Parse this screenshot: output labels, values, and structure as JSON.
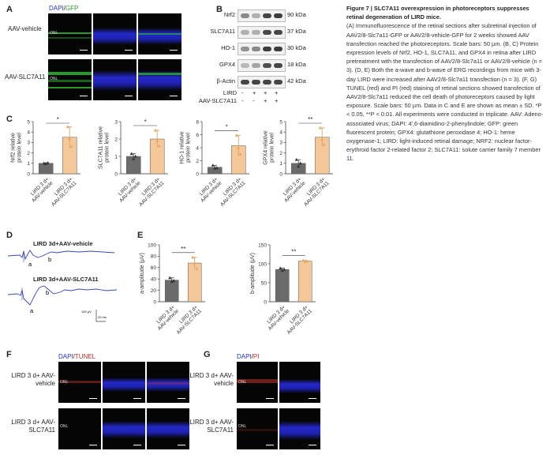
{
  "panelA": {
    "label": "A",
    "header_dapi": "DAPI",
    "header_slash": "/",
    "header_gfp": "GFP",
    "rows": [
      "AAV-vehicle",
      "AAV-SLC7A11"
    ],
    "onl": "ONL"
  },
  "panelB": {
    "label": "B",
    "proteins": [
      "Nrf2",
      "SLC7A11",
      "HO-1",
      "GPX4",
      "β-Actin"
    ],
    "sizes": [
      "90 kDa",
      "37 kDa",
      "30 kDa",
      "18 kDa",
      "42 kDa"
    ],
    "lird_label": "LIRD",
    "lird_signs": [
      "-",
      "+",
      "+",
      "+"
    ],
    "aav_label": "AAV-SLC7A11",
    "aav_signs": [
      "-",
      "-",
      "+",
      "+"
    ]
  },
  "panelC": {
    "label": "C",
    "sig": "*",
    "sig2": "**",
    "groups": [
      "LIRD 3 d+ AAV-vehicle",
      "LIRD 3 d+ AAV-SLC7A11"
    ]
  },
  "panelD": {
    "label": "D",
    "trace1_title": "LIRD 3d+AAV-vehicle",
    "trace2_title": "LIRD 3d+AAV-SLC7A11",
    "wave_a": "a",
    "wave_b": "b",
    "scale_uv": "100 μV",
    "scale_ms": "20 ms"
  },
  "panelE": {
    "label": "E",
    "sig": "**",
    "groups": [
      "LIRD 3 d+ AAV-vehicle",
      "LIRD 3 d+ AAV-SLC7A11"
    ]
  },
  "panelF": {
    "label": "F",
    "header_dapi": "DAPI",
    "header_slash": "/",
    "header_tunel": "TUNEL",
    "rows": [
      "LIRD 3 d+ AAV-vehicle",
      "LIRD 3 d+ AAV-SLC7A11"
    ],
    "onl": "ONL"
  },
  "panelG": {
    "label": "G",
    "header_dapi": "DAPI",
    "header_slash": "/",
    "header_pi": "PI",
    "rows": [
      "LIRD 3 d+ AAV-vehicle",
      "LIRD 3 d+ AAV-SLC7A11"
    ],
    "onl": "ONL"
  },
  "caption": {
    "title": "Figure 7 | SLC7A11 overexpression in photoreceptors suppresses retinal degeneration of LIRD mice.",
    "body": "(A) Immunofluorescence of the retinal sections after subretinal injection of AAV2/8-Slc7a11-GFP or AAV2/8-vehicle-GFP for 2 weeks showed AAV transfection reached the photoreceptors. Scale bars: 50 µm. (B, C) Protein expression levels of Nrf2, HO-1, SLC7A11, and GPX4 in retina after LIRD pretreatment with the transfection of AAV2/8-Slc7a11 or AAV2/8-vehicle (n = 3). (D, E) Both the a-wave and b-wave of ERG recordings from mice with 3-day LIRD were increased after AAV2/8-Slc7a11 transfection (n = 3). (F, G) TUNEL (red) and PI (red) staining of retinal sections showed transfection of AAV2/8-Slc7a11 reduced the cell death of photoreceptors caused by light exposure. Scale bars: 50 µm. Data in C and E are shown as mean ± SD. *P < 0.05, **P < 0.01. All experiments were conducted in triplicate. AAV: Adeno-associated virus; DAPI: 4',6-diamidino-2-phenylindole; GFP: green fluorescent protein; GPX4: glutathione peroxidase 4; HO-1: heme oxygenase-1; LIRD: light-induced retinal damage; NRF2: nuclear factor-erythroid factor 2-related factor 2; SLC7A11: solute carrier family 7 member 11."
  },
  "chart_data": [
    {
      "type": "bar",
      "panel": "C",
      "ylabel": "Nrf2 relative protein level",
      "categories": [
        "LIRD 3 d+ AAV-vehicle",
        "LIRD 3 d+ AAV-SLC7A11"
      ],
      "values": [
        1.0,
        3.5
      ],
      "errors": [
        0.05,
        1.0
      ],
      "ylim": [
        0,
        5
      ],
      "yticks": [
        0,
        1,
        2,
        3,
        4,
        5
      ],
      "points": [
        [
          1.0,
          0.95,
          1.05
        ],
        [
          4.5,
          3.4,
          2.6
        ]
      ],
      "colors": [
        "#6b6b6b",
        "#f5c89a"
      ]
    },
    {
      "type": "bar",
      "panel": "C",
      "ylabel": "SLC7A11 relative protein level",
      "categories": [
        "LIRD 3 d+ AAV-vehicle",
        "LIRD 3 d+ AAV-SLC7A11"
      ],
      "values": [
        1.0,
        2.0
      ],
      "errors": [
        0.15,
        0.5
      ],
      "ylim": [
        0,
        3
      ],
      "yticks": [
        0,
        1,
        2,
        3
      ],
      "points": [
        [
          1.15,
          0.85,
          1.0
        ],
        [
          2.5,
          1.9,
          1.6
        ]
      ],
      "colors": [
        "#6b6b6b",
        "#f5c89a"
      ]
    },
    {
      "type": "bar",
      "panel": "C",
      "ylabel": "HO-1 relative protein level",
      "categories": [
        "LIRD 3 d+ AAV-vehicle",
        "LIRD 3 d+ AAV-SLC7A11"
      ],
      "values": [
        1.0,
        4.3
      ],
      "errors": [
        0.3,
        1.6
      ],
      "ylim": [
        0,
        8
      ],
      "yticks": [
        0,
        2,
        4,
        6,
        8
      ],
      "points": [
        [
          1.3,
          0.8,
          0.9
        ],
        [
          5.9,
          4.0,
          3.0
        ]
      ],
      "colors": [
        "#6b6b6b",
        "#f5c89a"
      ]
    },
    {
      "type": "bar",
      "panel": "C",
      "ylabel": "GPX4 relative protein level",
      "categories": [
        "LIRD 3 d+ AAV-vehicle",
        "LIRD 3 d+ AAV-SLC7A11"
      ],
      "values": [
        1.0,
        3.5
      ],
      "errors": [
        0.35,
        0.9
      ],
      "ylim": [
        0,
        5
      ],
      "yticks": [
        0,
        1,
        2,
        3,
        4,
        5
      ],
      "points": [
        [
          1.35,
          0.7,
          1.0
        ],
        [
          4.4,
          3.3,
          2.8
        ]
      ],
      "colors": [
        "#6b6b6b",
        "#f5c89a"
      ]
    },
    {
      "type": "bar",
      "panel": "E",
      "ylabel": "a-amplitude (μV)",
      "categories": [
        "LIRD 3 d+ AAV-vehicle",
        "LIRD 3 d+ AAV-SLC7A11"
      ],
      "values": [
        38,
        68
      ],
      "errors": [
        4,
        10
      ],
      "ylim": [
        0,
        100
      ],
      "yticks": [
        0,
        20,
        40,
        60,
        80,
        100
      ],
      "points": [
        [
          42,
          35,
          37
        ],
        [
          78,
          68,
          58
        ]
      ],
      "colors": [
        "#6b6b6b",
        "#f5c89a"
      ]
    },
    {
      "type": "bar",
      "panel": "E",
      "ylabel": "b-amplitude (μV)",
      "categories": [
        "LIRD 3 d+ AAV-vehicle",
        "LIRD 3 d+ AAV-SLC7A11"
      ],
      "values": [
        85,
        107
      ],
      "errors": [
        4,
        2
      ],
      "ylim": [
        0,
        150
      ],
      "yticks": [
        0,
        50,
        100,
        150
      ],
      "points": [
        [
          88,
          82,
          85
        ],
        [
          109,
          105,
          107
        ]
      ],
      "colors": [
        "#6b6b6b",
        "#f5c89a"
      ]
    }
  ]
}
